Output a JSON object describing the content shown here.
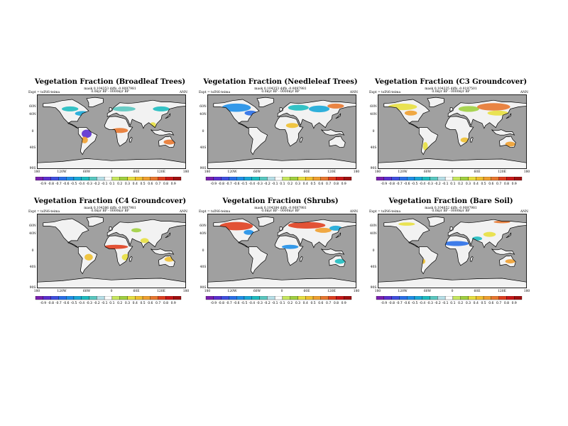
{
  "latitude_labels": [
    "60N",
    "40N",
    "0",
    "40S",
    "90S"
  ],
  "longitude_labels": [
    "180",
    "120W",
    "60W",
    "0",
    "60E",
    "120E",
    "180"
  ],
  "colorbar_labels_a": [
    "-0.9",
    "-0.8",
    "-0.7",
    "-0.6",
    "-0.5",
    "-0.4",
    "-0.3",
    "-0.2",
    "-0.1",
    "0.1",
    "0.2",
    "0.3",
    "0.4",
    "0.5",
    "0.6",
    "0.7",
    "0.8",
    "0.9"
  ],
  "colorbar_labels_b": [
    "-0.9",
    "-0.8",
    "-0.7",
    "-0.6",
    "-0.5",
    "-0.4",
    "-0.3",
    "-0.2",
    "-0.1",
    "0.1",
    "0.2",
    "0.3",
    "0.4",
    "0.5",
    "0.6",
    "0.7",
    "0.8",
    "0.9"
  ],
  "colors": {
    "ocean": "#a0a0a0",
    "land": "#f2f2f2",
    "coast": "#000000",
    "scale": [
      "#7a1fb0",
      "#5b2fd0",
      "#3f4fe0",
      "#2a6fe8",
      "#1f8fe8",
      "#1aa8d8",
      "#1fbcc0",
      "#5ac8c0",
      "#b8e0e8",
      "#ffffff",
      "#c8e860",
      "#a0d040",
      "#e8e040",
      "#f0c030",
      "#f0a030",
      "#e87830",
      "#e04020",
      "#c81818",
      "#a01010"
    ]
  },
  "panels": [
    {
      "title": "Vegetation Fraction (Broadleaf Trees)",
      "stats1": "mask 0.104353 diffs -0.0097981",
      "stats2": "0.0kyr BP - 0000kyr BP",
      "expt": "Expt = tsIN6-teima",
      "season": "ANN",
      "patches": [
        {
          "lon": -70,
          "lat": 44,
          "rx": 18,
          "ry": 6,
          "c": 5
        },
        {
          "lon": -100,
          "lat": 55,
          "rx": 20,
          "ry": 6,
          "c": 6
        },
        {
          "lon": -60,
          "lat": -5,
          "rx": 12,
          "ry": 10,
          "c": 1
        },
        {
          "lon": -65,
          "lat": -20,
          "rx": 8,
          "ry": 8,
          "c": 14
        },
        {
          "lon": 20,
          "lat": 3,
          "rx": 20,
          "ry": 6,
          "c": 15
        },
        {
          "lon": 30,
          "lat": 55,
          "rx": 28,
          "ry": 6,
          "c": 7
        },
        {
          "lon": 120,
          "lat": 55,
          "rx": 20,
          "ry": 6,
          "c": 6
        },
        {
          "lon": 140,
          "lat": -25,
          "rx": 14,
          "ry": 6,
          "c": 15
        },
        {
          "lon": 100,
          "lat": 15,
          "rx": 8,
          "ry": 8,
          "c": 12
        }
      ]
    },
    {
      "title": "Vegetation Fraction (Needleleaf Trees)",
      "stats1": "mask 0.104353 diffs -0.0097981",
      "stats2": "0.0kyr BP - 0000kyr BP",
      "expt": "Expt = tsIN6-teima",
      "season": "ANN",
      "patches": [
        {
          "lon": -110,
          "lat": 58,
          "rx": 35,
          "ry": 10,
          "c": 4
        },
        {
          "lon": -75,
          "lat": 45,
          "rx": 15,
          "ry": 6,
          "c": 3
        },
        {
          "lon": 40,
          "lat": 58,
          "rx": 25,
          "ry": 7,
          "c": 6
        },
        {
          "lon": 90,
          "lat": 55,
          "rx": 25,
          "ry": 8,
          "c": 5
        },
        {
          "lon": 25,
          "lat": 15,
          "rx": 15,
          "ry": 6,
          "c": 13
        },
        {
          "lon": 130,
          "lat": 62,
          "rx": 20,
          "ry": 6,
          "c": 15
        }
      ]
    },
    {
      "title": "Vegetation Fraction (C3 Groundcover)",
      "stats1": "mask 0.104335 diffs -0.0197501",
      "stats2": "0.0kyr BP - 0000kyr BP",
      "expt": "Expt = tsIN6-teima",
      "season": "ANN",
      "patches": [
        {
          "lon": -120,
          "lat": 60,
          "rx": 35,
          "ry": 8,
          "c": 12
        },
        {
          "lon": -100,
          "lat": 45,
          "rx": 15,
          "ry": 6,
          "c": 14
        },
        {
          "lon": 40,
          "lat": 55,
          "rx": 25,
          "ry": 7,
          "c": 11
        },
        {
          "lon": 100,
          "lat": 60,
          "rx": 40,
          "ry": 9,
          "c": 15
        },
        {
          "lon": 110,
          "lat": 45,
          "rx": 25,
          "ry": 6,
          "c": 12
        },
        {
          "lon": -65,
          "lat": -35,
          "rx": 6,
          "ry": 10,
          "c": 12
        },
        {
          "lon": 140,
          "lat": -30,
          "rx": 12,
          "ry": 6,
          "c": 14
        },
        {
          "lon": 30,
          "lat": -20,
          "rx": 10,
          "ry": 6,
          "c": 13
        }
      ]
    },
    {
      "title": "Vegetation Fraction (C4 Groundcover)",
      "stats1": "mask 0.104386 diffs -0.0097981",
      "stats2": "0.0kyr BP - 0000kyr BP",
      "expt": "Expt = tsIN6-teima",
      "season": "ANN",
      "patches": [
        {
          "lon": 10,
          "lat": 10,
          "rx": 30,
          "ry": 5,
          "c": 16
        },
        {
          "lon": 35,
          "lat": -15,
          "rx": 10,
          "ry": 8,
          "c": 12
        },
        {
          "lon": -55,
          "lat": -15,
          "rx": 10,
          "ry": 8,
          "c": 13
        },
        {
          "lon": 80,
          "lat": 25,
          "rx": 10,
          "ry": 6,
          "c": 12
        },
        {
          "lon": 140,
          "lat": -20,
          "rx": 12,
          "ry": 6,
          "c": 13
        },
        {
          "lon": 60,
          "lat": 50,
          "rx": 12,
          "ry": 5,
          "c": 11
        }
      ]
    },
    {
      "title": "Vegetation Fraction (Shrubs)",
      "stats1": "mask 0.104384 diffs -0.0097981",
      "stats2": "0.0kyr BP - 0000kyr BP",
      "expt": "Expt = tsIN6-teima",
      "season": "ANN",
      "patches": [
        {
          "lon": -110,
          "lat": 60,
          "rx": 40,
          "ry": 10,
          "c": 16
        },
        {
          "lon": -80,
          "lat": 45,
          "rx": 12,
          "ry": 6,
          "c": 4
        },
        {
          "lon": 60,
          "lat": 62,
          "rx": 45,
          "ry": 8,
          "c": 16
        },
        {
          "lon": 100,
          "lat": 50,
          "rx": 20,
          "ry": 6,
          "c": 14
        },
        {
          "lon": 130,
          "lat": 55,
          "rx": 15,
          "ry": 6,
          "c": 5
        },
        {
          "lon": 20,
          "lat": 10,
          "rx": 20,
          "ry": 5,
          "c": 4
        },
        {
          "lon": 140,
          "lat": -25,
          "rx": 12,
          "ry": 6,
          "c": 6
        }
      ]
    },
    {
      "title": "Vegetation Fraction (Bare Soil)",
      "stats1": "mask 0.104852 diffs -0.0097981",
      "stats2": "0.0kyr BP - 0000kyr BP",
      "expt": "Expt = tsIN6-teima",
      "season": "ANN",
      "patches": [
        {
          "lon": 10,
          "lat": 18,
          "rx": 30,
          "ry": 6,
          "c": 3
        },
        {
          "lon": 60,
          "lat": 30,
          "rx": 12,
          "ry": 5,
          "c": 6
        },
        {
          "lon": 90,
          "lat": 40,
          "rx": 15,
          "ry": 6,
          "c": 12
        },
        {
          "lon": -110,
          "lat": 65,
          "rx": 20,
          "ry": 4,
          "c": 12
        },
        {
          "lon": 140,
          "lat": -25,
          "rx": 12,
          "ry": 5,
          "c": 14
        },
        {
          "lon": -70,
          "lat": -25,
          "rx": 5,
          "ry": 6,
          "c": 13
        },
        {
          "lon": 120,
          "lat": 70,
          "rx": 20,
          "ry": 3,
          "c": 15
        }
      ]
    }
  ]
}
